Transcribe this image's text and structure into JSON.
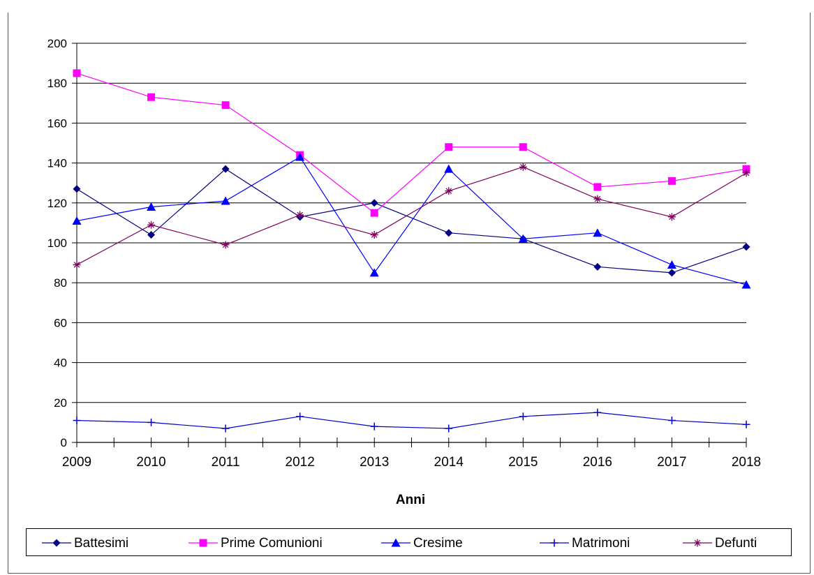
{
  "chart_data": {
    "type": "line",
    "title": "",
    "xlabel": "Anni",
    "ylabel": "",
    "categories": [
      "2009",
      "2010",
      "2011",
      "2012",
      "2013",
      "2014",
      "2015",
      "2016",
      "2017",
      "2018"
    ],
    "ylim": [
      0,
      200
    ],
    "yticks": [
      0,
      20,
      40,
      60,
      80,
      100,
      120,
      140,
      160,
      180,
      200
    ],
    "grid": true,
    "legend_position": "bottom",
    "series": [
      {
        "name": "Battesimi",
        "color": "#000080",
        "marker": "diamond",
        "values": [
          127,
          104,
          137,
          113,
          120,
          105,
          102,
          88,
          85,
          98
        ]
      },
      {
        "name": "Prime Comunioni",
        "color": "#ff00ff",
        "marker": "square",
        "values": [
          185,
          173,
          169,
          144,
          115,
          148,
          148,
          128,
          131,
          137
        ]
      },
      {
        "name": "Cresime",
        "color": "#0000ff",
        "marker": "triangle",
        "values": [
          111,
          118,
          121,
          143,
          85,
          137,
          102,
          105,
          89,
          79
        ]
      },
      {
        "name": "Matrimoni",
        "color": "#0000cc",
        "marker": "plus",
        "values": [
          11,
          10,
          7,
          13,
          8,
          7,
          13,
          15,
          11,
          9
        ]
      },
      {
        "name": "Defunti",
        "color": "#800060",
        "marker": "asterisk",
        "values": [
          89,
          109,
          99,
          114,
          104,
          126,
          138,
          122,
          113,
          135
        ]
      }
    ]
  }
}
